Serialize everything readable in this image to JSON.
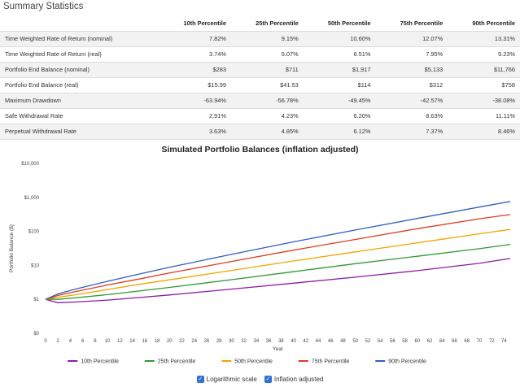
{
  "summary": {
    "title": "Summary Statistics",
    "headers": [
      "",
      "10th Percentile",
      "25th Percentile",
      "50th Percentile",
      "75th Percentile",
      "90th Percentile"
    ],
    "rows": [
      {
        "label": "Time Weighted Rate of Return (nominal)",
        "values": [
          "7.82%",
          "9.15%",
          "10.60%",
          "12.07%",
          "13.31%"
        ]
      },
      {
        "label": "Time Weighted Rate of Return (real)",
        "values": [
          "3.74%",
          "5.07%",
          "6.51%",
          "7.95%",
          "9.23%"
        ]
      },
      {
        "label": "Portfolio End Balance (nominal)",
        "values": [
          "$283",
          "$711",
          "$1,917",
          "$5,133",
          "$11,766"
        ]
      },
      {
        "label": "Portfolio End Balance (real)",
        "values": [
          "$15.99",
          "$41.53",
          "$114",
          "$312",
          "$758"
        ]
      },
      {
        "label": "Maximum Drawdown",
        "values": [
          "-63.94%",
          "-56.78%",
          "-49.45%",
          "-42.57%",
          "-38.08%"
        ]
      },
      {
        "label": "Safe Withdrawal Rate",
        "values": [
          "2.91%",
          "4.23%",
          "6.20%",
          "8.63%",
          "11.11%"
        ]
      },
      {
        "label": "Perpetual Withdrawal Rate",
        "values": [
          "3.63%",
          "4.85%",
          "6.12%",
          "7.37%",
          "8.46%"
        ]
      }
    ]
  },
  "chart": {
    "title": "Simulated Portfolio Balances (inflation adjusted)",
    "xlabel": "Year",
    "ylabel": "Portfolio Balance ($)",
    "ytick_labels": [
      "$0",
      "$1",
      "$10",
      "$100",
      "$1,000",
      "$10,000"
    ],
    "xtick_labels": [
      "0",
      "2",
      "4",
      "6",
      "8",
      "10",
      "12",
      "14",
      "16",
      "18",
      "20",
      "22",
      "24",
      "26",
      "28",
      "30",
      "32",
      "34",
      "36",
      "38",
      "40",
      "42",
      "44",
      "46",
      "48",
      "50",
      "52",
      "54",
      "56",
      "58",
      "60",
      "62",
      "64",
      "66",
      "68",
      "70",
      "72",
      "74"
    ]
  },
  "chart_data": {
    "type": "line",
    "title": "Simulated Portfolio Balances (inflation adjusted)",
    "xlabel": "Year",
    "ylabel": "Portfolio Balance ($)",
    "yscale": "log",
    "ylim": [
      0,
      10000
    ],
    "xlim": [
      0,
      75
    ],
    "grid": false,
    "legend_position": "bottom",
    "x": [
      0,
      2,
      5,
      10,
      15,
      20,
      30,
      40,
      50,
      60,
      70,
      75
    ],
    "series": [
      {
        "name": "10th Percentile",
        "color": "#8e1aa5",
        "values": [
          1,
          0.8,
          0.84,
          0.95,
          1.13,
          1.35,
          2.0,
          3.0,
          4.5,
          7.0,
          11.5,
          15.99
        ]
      },
      {
        "name": "25th Percentile",
        "color": "#2e9a2e",
        "values": [
          1,
          1.0,
          1.12,
          1.38,
          1.75,
          2.25,
          3.8,
          6.5,
          11.2,
          18.5,
          31,
          41.53
        ]
      },
      {
        "name": "50th Percentile",
        "color": "#f0a500",
        "values": [
          1,
          1.15,
          1.38,
          1.95,
          2.75,
          3.75,
          7.1,
          13.5,
          25,
          46,
          85,
          114
        ]
      },
      {
        "name": "75th Percentile",
        "color": "#e03c1e",
        "values": [
          1,
          1.3,
          1.72,
          2.65,
          3.95,
          6.0,
          13.0,
          28,
          58,
          120,
          235,
          312
        ]
      },
      {
        "name": "90th Percentile",
        "color": "#2f5fbf",
        "values": [
          1,
          1.45,
          2.05,
          3.4,
          5.5,
          8.8,
          21,
          49,
          110,
          240,
          520,
          758
        ]
      }
    ]
  },
  "options": [
    {
      "label": "Logarithmic scale",
      "checked": true
    },
    {
      "label": "Inflation adjusted",
      "checked": true
    }
  ]
}
